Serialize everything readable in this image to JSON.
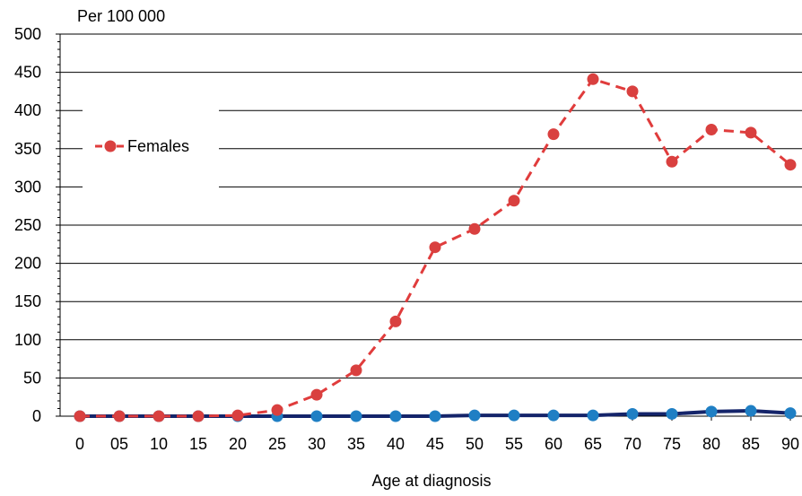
{
  "chart_data": {
    "type": "line",
    "unit_label": "Per 100 000",
    "xlabel": "Age at diagnosis",
    "ylabel": "",
    "categories": [
      "0",
      "05",
      "10",
      "15",
      "20",
      "25",
      "30",
      "35",
      "40",
      "45",
      "50",
      "55",
      "60",
      "65",
      "70",
      "75",
      "80",
      "85",
      "90"
    ],
    "ylim": [
      0,
      500
    ],
    "yticks": [
      0,
      50,
      100,
      150,
      200,
      250,
      300,
      350,
      400,
      450,
      500
    ],
    "grid": true,
    "legend_position": "left",
    "series": [
      {
        "name": "Females",
        "color": "#e03c3c",
        "marker_color": "#d9403f",
        "line_style": "dashed",
        "values": [
          0,
          0,
          0,
          0,
          1,
          8,
          28,
          60,
          124,
          221,
          245,
          282,
          369,
          441,
          425,
          333,
          375,
          371,
          329
        ]
      },
      {
        "name": "",
        "color": "#14246a",
        "marker_color": "#1f7fc4",
        "line_style": "solid",
        "values": [
          0,
          0,
          0,
          0,
          0,
          0,
          0,
          0,
          0,
          0,
          1,
          1,
          1,
          1,
          3,
          3,
          6,
          7,
          4
        ]
      }
    ]
  }
}
